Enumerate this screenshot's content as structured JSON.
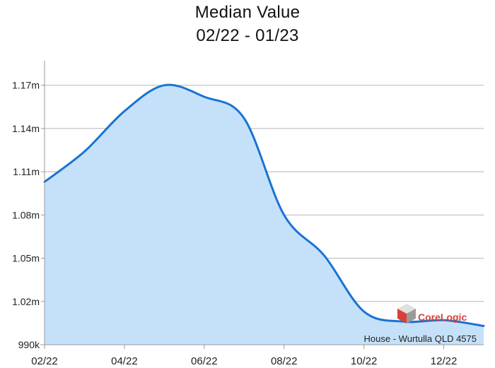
{
  "chart_data": {
    "type": "area",
    "title": "Median Value",
    "subtitle": "02/22 - 01/23",
    "xlabel": "",
    "ylabel": "",
    "x_tick_labels": [
      "02/22",
      "04/22",
      "06/22",
      "08/22",
      "10/22",
      "12/22"
    ],
    "y_tick_labels": [
      "990k",
      "1.02m",
      "1.05m",
      "1.08m",
      "1.11m",
      "1.14m",
      "1.17m"
    ],
    "y_tick_values": [
      990000,
      1020000,
      1050000,
      1080000,
      1110000,
      1140000,
      1170000
    ],
    "ylim": [
      990000,
      1187000
    ],
    "x": [
      "02/22",
      "03/22",
      "04/22",
      "05/22",
      "06/22",
      "07/22",
      "08/22",
      "09/22",
      "10/22",
      "11/22",
      "12/22",
      "01/23"
    ],
    "series": [
      {
        "values": [
          1103000,
          1124000,
          1152000,
          1170000,
          1162000,
          1147000,
          1080000,
          1052000,
          1013000,
          1006000,
          1007000,
          1003000
        ]
      }
    ],
    "grid": true,
    "line_color": "#1a73d2",
    "fill_color": "#c5e1fa",
    "annotation": "House - Wurtulla QLD 4575"
  },
  "logo": {
    "brand_text": "CoreLogic",
    "brand_color": "#d8413a"
  }
}
